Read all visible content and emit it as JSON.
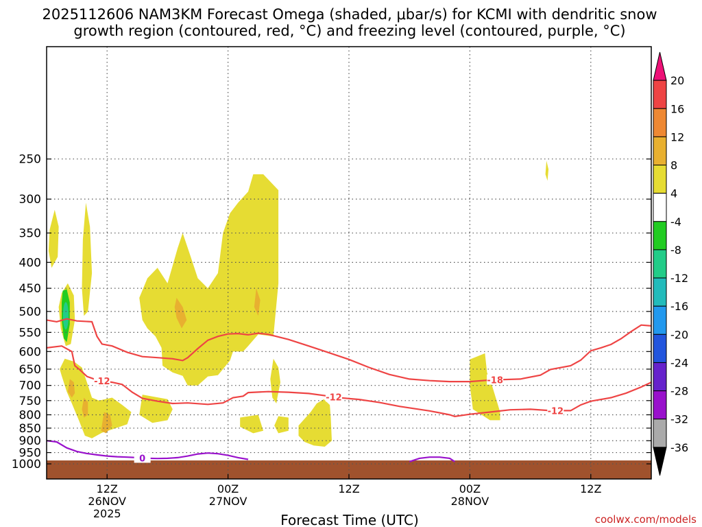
{
  "chart_data": {
    "type": "heatmap",
    "title_lines": [
      "2025112606 NAM3KM Forecast Omega (shaded, μbar/s) for KCMI with dendritic snow",
      "growth region (contoured, red, °C) and freezing level (contoured, purple, °C)"
    ],
    "xlabel": "Forecast Time (UTC)",
    "credit": "coolwx.com/models",
    "x_range_hours": [
      0,
      60
    ],
    "y_scale": "log-pressure",
    "ylim": [
      1000,
      150
    ],
    "y_ticks": [
      250,
      300,
      350,
      400,
      450,
      500,
      550,
      600,
      650,
      700,
      750,
      800,
      850,
      900,
      950,
      1000
    ],
    "x_ticks": [
      {
        "hour": 6,
        "lines": [
          "12Z",
          "26NOV",
          "2025"
        ]
      },
      {
        "hour": 18,
        "lines": [
          "00Z",
          "27NOV"
        ]
      },
      {
        "hour": 30,
        "lines": [
          "12Z"
        ]
      },
      {
        "hour": 42,
        "lines": [
          "00Z",
          "28NOV"
        ]
      },
      {
        "hour": 54,
        "lines": [
          "12Z"
        ]
      }
    ],
    "colorbar": {
      "labels": [
        "20",
        "16",
        "12",
        "8",
        "4",
        "-4",
        "-8",
        "-12",
        "-16",
        "-20",
        "-24",
        "-28",
        "-32",
        "-36"
      ],
      "colors": [
        "#ee1177",
        "#ee4444",
        "#ee8833",
        "#e8b030",
        "#e6dc33",
        "#ffffff",
        "#22cc22",
        "#22cc88",
        "#22bbbb",
        "#2299ee",
        "#2255dd",
        "#6622cc",
        "#9911cc",
        "#aaaaaa",
        "#000000"
      ]
    },
    "contours": [
      {
        "label": "-12",
        "color": "#ee4444",
        "points": [
          [
            0,
            590
          ],
          [
            1.5,
            585
          ],
          [
            2.5,
            600
          ],
          [
            2.8,
            640
          ],
          [
            3.3,
            652
          ],
          [
            4,
            672
          ],
          [
            5,
            683
          ],
          [
            6.5,
            690
          ],
          [
            7.5,
            697
          ],
          [
            8.5,
            722
          ],
          [
            9.5,
            742
          ],
          [
            11,
            752
          ],
          [
            12.5,
            760
          ],
          [
            14,
            758
          ],
          [
            16,
            763
          ],
          [
            17.5,
            758
          ],
          [
            18.5,
            740
          ],
          [
            19.5,
            735
          ],
          [
            20,
            723
          ],
          [
            22,
            720
          ],
          [
            24,
            722
          ],
          [
            26,
            726
          ],
          [
            28,
            735
          ],
          [
            29,
            740
          ],
          [
            31,
            746
          ],
          [
            33,
            756
          ],
          [
            35,
            770
          ],
          [
            38,
            786
          ],
          [
            40,
            800
          ],
          [
            40.5,
            806
          ],
          [
            42,
            798
          ],
          [
            44,
            790
          ],
          [
            46,
            782
          ],
          [
            48,
            780
          ],
          [
            50,
            785
          ],
          [
            52,
            785
          ],
          [
            53,
            765
          ],
          [
            54,
            752
          ],
          [
            56,
            740
          ],
          [
            57.5,
            725
          ],
          [
            59,
            705
          ],
          [
            60,
            690
          ]
        ]
      },
      {
        "label": "-18",
        "color": "#ee4444",
        "points": [
          [
            0,
            520
          ],
          [
            1,
            524
          ],
          [
            2,
            517
          ],
          [
            3,
            522
          ],
          [
            4.5,
            524
          ],
          [
            5,
            560
          ],
          [
            5.5,
            580
          ],
          [
            6.5,
            585
          ],
          [
            8,
            602
          ],
          [
            9.5,
            614
          ],
          [
            11,
            617
          ],
          [
            12.5,
            620
          ],
          [
            13.5,
            625
          ],
          [
            14,
            617
          ],
          [
            15,
            592
          ],
          [
            16,
            570
          ],
          [
            17,
            560
          ],
          [
            18,
            554
          ],
          [
            19,
            553
          ],
          [
            20,
            556
          ],
          [
            21,
            552
          ],
          [
            22,
            555
          ],
          [
            24,
            568
          ],
          [
            26,
            585
          ],
          [
            28,
            603
          ],
          [
            30,
            622
          ],
          [
            32,
            645
          ],
          [
            34,
            666
          ],
          [
            36,
            680
          ],
          [
            38,
            685
          ],
          [
            40,
            688
          ],
          [
            42,
            688
          ],
          [
            44,
            683
          ],
          [
            47,
            680
          ],
          [
            49,
            668
          ],
          [
            50,
            651
          ],
          [
            52,
            640
          ],
          [
            53,
            624
          ],
          [
            54,
            598
          ],
          [
            55,
            590
          ],
          [
            56,
            581
          ],
          [
            57,
            566
          ],
          [
            58,
            548
          ],
          [
            59,
            532
          ],
          [
            60,
            534
          ]
        ]
      },
      {
        "label": "0",
        "color": "#9911cc",
        "points": [
          [
            0,
            900
          ],
          [
            1,
            905
          ],
          [
            2,
            930
          ],
          [
            3,
            945
          ],
          [
            4,
            954
          ],
          [
            5,
            960
          ],
          [
            6,
            965
          ],
          [
            7,
            968
          ],
          [
            8,
            970
          ],
          [
            9,
            972
          ],
          [
            10,
            975
          ],
          [
            11,
            976
          ],
          [
            12,
            975
          ],
          [
            13,
            972
          ],
          [
            14,
            965
          ],
          [
            15,
            956
          ],
          [
            16,
            952
          ],
          [
            17,
            955
          ],
          [
            18,
            962
          ],
          [
            19,
            972
          ],
          [
            20,
            980
          ]
        ]
      },
      {
        "label": "",
        "color": "#9911cc",
        "points": [
          [
            36,
            990
          ],
          [
            37,
            975
          ],
          [
            38,
            970
          ],
          [
            39,
            970
          ],
          [
            40,
            975
          ],
          [
            40.5,
            990
          ]
        ]
      }
    ],
    "omega_regions": [
      {
        "value": 4,
        "points": [
          [
            0.3,
            345
          ],
          [
            0.8,
            315
          ],
          [
            1.2,
            340
          ],
          [
            1.1,
            390
          ],
          [
            0.5,
            410
          ],
          [
            0.2,
            380
          ]
        ]
      },
      {
        "value": 4,
        "points": [
          [
            1.5,
            460
          ],
          [
            2.1,
            440
          ],
          [
            2.7,
            465
          ],
          [
            2.8,
            520
          ],
          [
            2.4,
            580
          ],
          [
            1.9,
            585
          ],
          [
            1.4,
            540
          ],
          [
            1.2,
            490
          ]
        ]
      },
      {
        "value": 4,
        "points": [
          [
            1.8,
            620
          ],
          [
            2.7,
            628
          ],
          [
            3.5,
            645
          ],
          [
            4,
            690
          ],
          [
            4.5,
            740
          ],
          [
            5.2,
            750
          ],
          [
            6.5,
            740
          ],
          [
            7.5,
            765
          ],
          [
            8.4,
            790
          ],
          [
            8,
            835
          ],
          [
            6.5,
            855
          ],
          [
            5.5,
            868
          ],
          [
            4.5,
            890
          ],
          [
            3.8,
            880
          ],
          [
            3.2,
            820
          ],
          [
            2.5,
            760
          ],
          [
            2,
            720
          ],
          [
            1.5,
            670
          ],
          [
            1.3,
            650
          ]
        ]
      },
      {
        "value": 8,
        "points": [
          [
            2.3,
            680
          ],
          [
            2.7,
            690
          ],
          [
            2.8,
            725
          ],
          [
            2.5,
            740
          ],
          [
            2.1,
            720
          ]
        ]
      },
      {
        "value": 8,
        "points": [
          [
            3.7,
            740
          ],
          [
            4.1,
            755
          ],
          [
            4.1,
            800
          ],
          [
            3.7,
            810
          ],
          [
            3.5,
            780
          ]
        ]
      },
      {
        "value": 8,
        "points": [
          [
            5.7,
            790
          ],
          [
            6.3,
            800
          ],
          [
            6.5,
            840
          ],
          [
            5.9,
            870
          ],
          [
            5.4,
            860
          ]
        ]
      },
      {
        "value": 4,
        "points": [
          [
            3.6,
            360
          ],
          [
            3.9,
            305
          ],
          [
            4.3,
            340
          ],
          [
            4.5,
            420
          ],
          [
            4.1,
            500
          ],
          [
            3.7,
            510
          ],
          [
            3.5,
            450
          ]
        ]
      },
      {
        "value": 4,
        "points": [
          [
            10,
            430
          ],
          [
            11,
            410
          ],
          [
            12,
            440
          ],
          [
            13,
            375
          ],
          [
            13.5,
            350
          ],
          [
            14.3,
            390
          ],
          [
            15,
            430
          ],
          [
            16,
            450
          ],
          [
            17,
            420
          ],
          [
            17.5,
            350
          ],
          [
            18.2,
            320
          ],
          [
            19,
            305
          ],
          [
            20,
            290
          ],
          [
            20.5,
            268
          ],
          [
            21.5,
            268
          ],
          [
            23,
            288
          ],
          [
            23,
            440
          ],
          [
            22.5,
            560
          ],
          [
            21,
            555
          ],
          [
            20,
            585
          ],
          [
            19.5,
            600
          ],
          [
            18.5,
            600
          ],
          [
            18.2,
            625
          ],
          [
            17.5,
            650
          ],
          [
            17,
            668
          ],
          [
            16,
            672
          ],
          [
            15,
            700
          ],
          [
            14,
            700
          ],
          [
            13.5,
            670
          ],
          [
            12.5,
            660
          ],
          [
            11.5,
            640
          ],
          [
            11.4,
            590
          ],
          [
            10.8,
            560
          ],
          [
            10,
            540
          ],
          [
            9.5,
            520
          ],
          [
            9.2,
            470
          ]
        ]
      },
      {
        "value": 8,
        "points": [
          [
            12.9,
            470
          ],
          [
            13.5,
            490
          ],
          [
            13.9,
            520
          ],
          [
            13.4,
            540
          ],
          [
            12.9,
            515
          ],
          [
            12.7,
            490
          ]
        ]
      },
      {
        "value": 8,
        "points": [
          [
            20.8,
            450
          ],
          [
            21.2,
            475
          ],
          [
            21,
            510
          ],
          [
            20.6,
            490
          ]
        ]
      },
      {
        "value": 4,
        "points": [
          [
            22.5,
            620
          ],
          [
            23,
            645
          ],
          [
            23.2,
            690
          ],
          [
            22.9,
            740
          ],
          [
            22.8,
            760
          ],
          [
            22.4,
            740
          ],
          [
            22.2,
            680
          ]
        ]
      },
      {
        "value": 4,
        "points": [
          [
            9.5,
            730
          ],
          [
            12,
            745
          ],
          [
            12.5,
            780
          ],
          [
            12,
            820
          ],
          [
            10.5,
            830
          ],
          [
            9.2,
            800
          ]
        ]
      },
      {
        "value": 4,
        "points": [
          [
            19.2,
            810
          ],
          [
            21,
            800
          ],
          [
            21.5,
            860
          ],
          [
            20.5,
            870
          ],
          [
            19.2,
            845
          ]
        ]
      },
      {
        "value": 4,
        "points": [
          [
            23,
            805
          ],
          [
            24,
            810
          ],
          [
            24,
            860
          ],
          [
            23,
            870
          ],
          [
            22.6,
            840
          ]
        ]
      },
      {
        "value": 4,
        "points": [
          [
            25,
            840
          ],
          [
            26.2,
            790
          ],
          [
            26.8,
            760
          ],
          [
            27.5,
            745
          ],
          [
            28.1,
            765
          ],
          [
            28.2,
            810
          ],
          [
            28.3,
            900
          ],
          [
            27.6,
            925
          ],
          [
            26.5,
            920
          ],
          [
            25.6,
            905
          ],
          [
            25,
            880
          ]
        ]
      },
      {
        "value": 4,
        "points": [
          [
            42,
            622
          ],
          [
            43.5,
            605
          ],
          [
            43.7,
            660
          ],
          [
            44.2,
            700
          ],
          [
            45,
            790
          ],
          [
            45,
            820
          ],
          [
            44,
            820
          ],
          [
            42.3,
            780
          ],
          [
            42,
            700
          ]
        ]
      },
      {
        "value": 4,
        "points": [
          [
            49.6,
            252
          ],
          [
            49.8,
            262
          ],
          [
            49.7,
            276
          ],
          [
            49.5,
            268
          ]
        ]
      }
    ],
    "omega_min_region": {
      "value": -12,
      "points": [
        [
          1.6,
          455
        ],
        [
          2,
          452
        ],
        [
          2.3,
          480
        ],
        [
          2.3,
          530
        ],
        [
          2,
          575
        ],
        [
          1.7,
          565
        ],
        [
          1.5,
          520
        ],
        [
          1.5,
          480
        ]
      ]
    }
  }
}
